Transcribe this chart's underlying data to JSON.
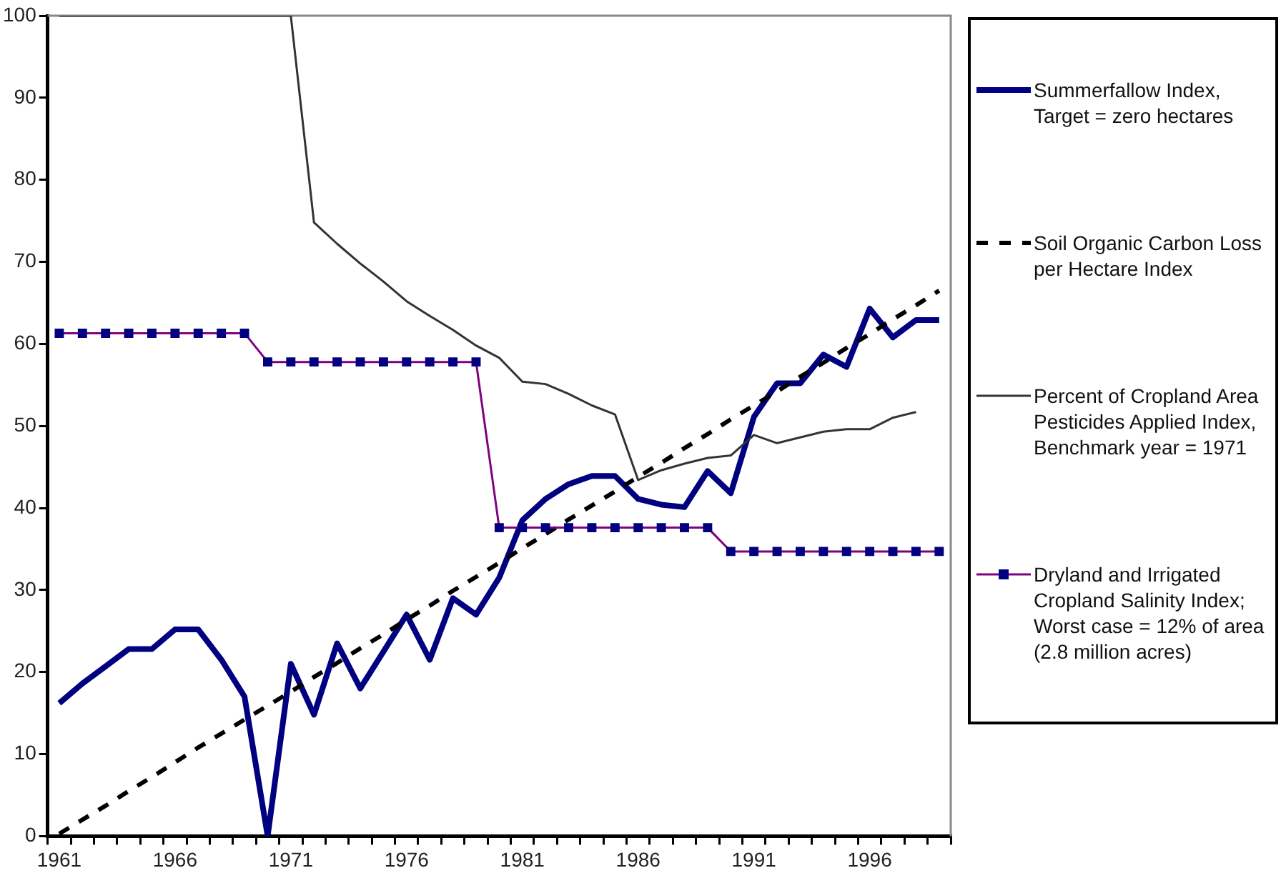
{
  "chart_data": {
    "type": "line",
    "categories": [
      "1961",
      null,
      null,
      null,
      null,
      "1966",
      null,
      null,
      null,
      null,
      "1971",
      null,
      null,
      null,
      null,
      "1976",
      null,
      null,
      null,
      null,
      "1981",
      null,
      null,
      null,
      null,
      "1986",
      null,
      null,
      null,
      null,
      "1991",
      null,
      null,
      null,
      null,
      "1996",
      null,
      null,
      null
    ],
    "series": [
      {
        "name": "Summerfallow Index, Target = zero hectares",
        "color": "#000080",
        "values": [
          16.2,
          18.6,
          20.7,
          22.8,
          22.8,
          25.2,
          25.2,
          21.5,
          17,
          0,
          21,
          14.8,
          23.5,
          18,
          22.5,
          27,
          21.5,
          29,
          27,
          31.5,
          38.5,
          41.1,
          42.9,
          43.9,
          43.9,
          41.1,
          40.4,
          40.1,
          44.5,
          41.8,
          51.1,
          55.2,
          55.2,
          58.7,
          57.2,
          64.3,
          60.8,
          62.9,
          62.9
        ]
      },
      {
        "name": "Soil Organic Carbon Loss per Hectare Index",
        "color": "#000000",
        "line_style": "dashed",
        "values": [
          0.3,
          2,
          3.7,
          5.5,
          7.2,
          9,
          10.8,
          12.5,
          14.2,
          15.9,
          17.6,
          19.4,
          21.1,
          22.9,
          24.6,
          26.4,
          28.1,
          29.9,
          31.6,
          33.3,
          35.1,
          36.8,
          38.6,
          40.3,
          42,
          43.8,
          45.5,
          47.3,
          49,
          50.8,
          52.5,
          54.2,
          56,
          57.7,
          59.5,
          61.2,
          63,
          64.7,
          66.5
        ]
      },
      {
        "name": "Percent of Cropland Area Pesticides Applied Index, Benchmark year = 1971",
        "color": "#333333",
        "values": [
          100,
          100,
          100,
          100,
          100,
          100,
          100,
          100,
          100,
          100,
          100,
          74.8,
          72.2,
          69.8,
          67.6,
          65.2,
          63.4,
          61.7,
          59.8,
          58.3,
          55.4,
          55.1,
          53.9,
          52.5,
          51.4,
          43.4,
          44.6,
          45.4,
          46.1,
          46.4,
          48.9,
          47.9,
          48.6,
          49.3,
          49.6,
          49.6,
          51,
          51.7,
          null
        ]
      },
      {
        "name": "Dryland and Irrigated Cropland Salinity Index; Worst case =  12% of area (2.8 million acres)",
        "color": "#800080",
        "marker": "square",
        "values": [
          61.3,
          61.3,
          61.3,
          61.3,
          61.3,
          61.3,
          61.3,
          61.3,
          61.3,
          57.8,
          57.8,
          57.8,
          57.8,
          57.8,
          57.8,
          57.8,
          57.8,
          57.8,
          57.8,
          37.6,
          37.6,
          37.6,
          37.6,
          37.6,
          37.6,
          37.6,
          37.6,
          37.6,
          37.6,
          34.7,
          34.7,
          34.7,
          34.7,
          34.7,
          34.7,
          34.7,
          34.7,
          34.7,
          34.7
        ]
      }
    ],
    "ylim": [
      0,
      100
    ],
    "yticks": [
      0,
      10,
      20,
      30,
      40,
      50,
      60,
      70,
      80,
      90,
      100
    ],
    "legend": "right",
    "grid": false
  }
}
